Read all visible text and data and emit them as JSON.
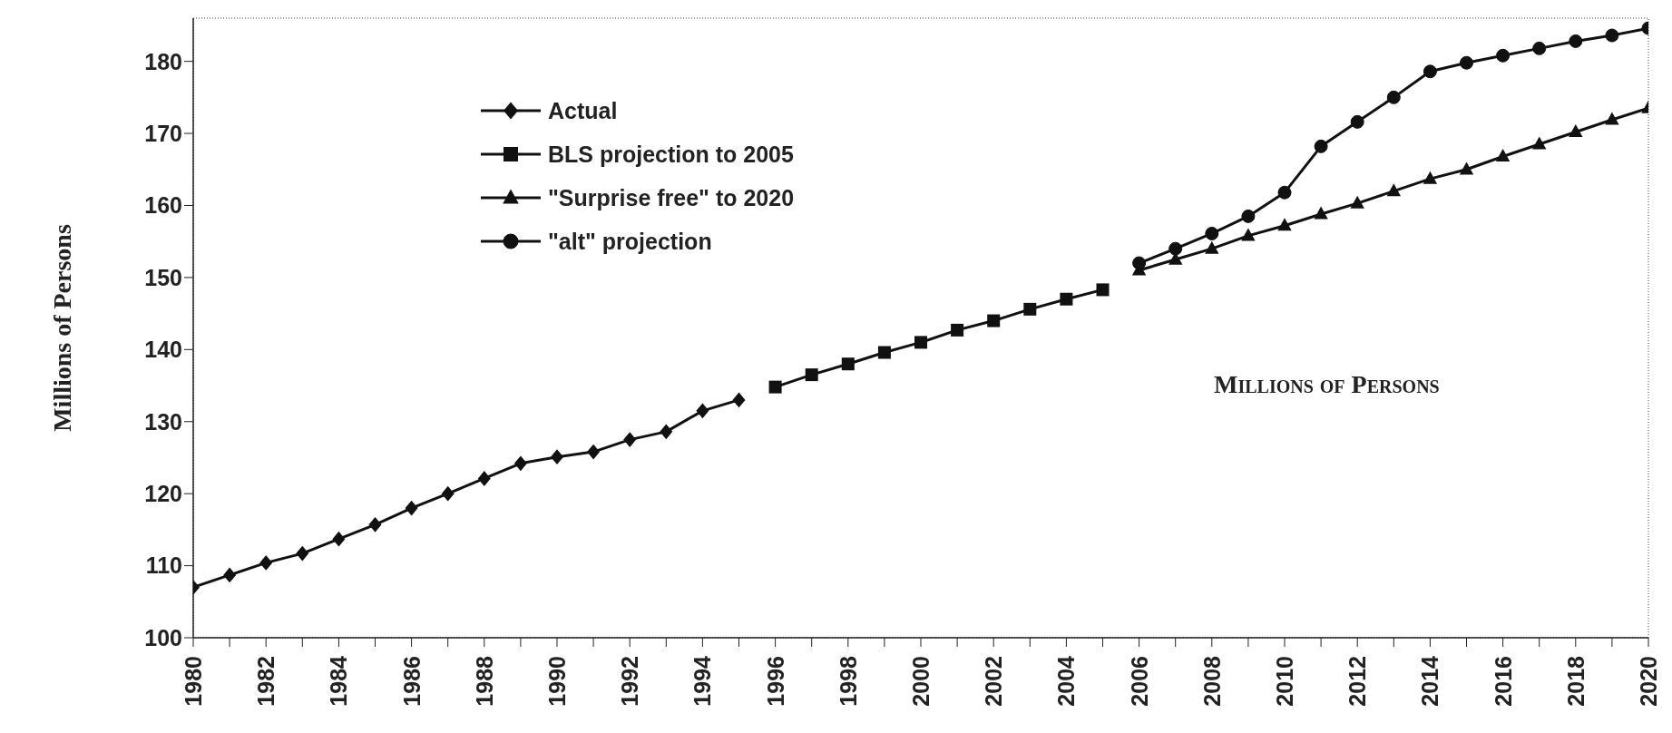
{
  "chart_data": {
    "type": "line",
    "ylabel": "Millions of Persons",
    "annotations": [
      "Millions of Persons"
    ],
    "xlim": [
      1980,
      2020
    ],
    "ylim": [
      100,
      186
    ],
    "xticks": [
      1980,
      {
        "value": 1981,
        "label": null
      },
      1982,
      {
        "value": 1983,
        "label": null
      },
      1984,
      {
        "value": 1985,
        "label": null
      },
      1986,
      {
        "value": 1987,
        "label": null
      },
      1988,
      {
        "value": 1989,
        "label": null
      },
      1990,
      {
        "value": 1991,
        "label": null
      },
      1992,
      {
        "value": 1993,
        "label": null
      },
      1994,
      {
        "value": 1995,
        "label": null
      },
      1996,
      {
        "value": 1997,
        "label": null
      },
      1998,
      {
        "value": 1999,
        "label": null
      },
      2000,
      {
        "value": 2001,
        "label": null
      },
      2002,
      {
        "value": 2003,
        "label": null
      },
      2004,
      {
        "value": 2005,
        "label": null
      },
      2006,
      {
        "value": 2007,
        "label": null
      },
      2008,
      {
        "value": 2009,
        "label": null
      },
      2010,
      {
        "value": 2011,
        "label": null
      },
      2012,
      {
        "value": 2013,
        "label": null
      },
      2014,
      {
        "value": 2015,
        "label": null
      },
      2016,
      {
        "value": 2017,
        "label": null
      },
      2018,
      {
        "value": 2019,
        "label": null
      },
      2020
    ],
    "yticks": [
      100,
      110,
      120,
      130,
      140,
      150,
      160,
      170,
      180
    ],
    "legend": "top left",
    "series": [
      {
        "name": "Actual",
        "color": "#111111",
        "marker": "diamond",
        "x": [
          1980,
          1981,
          1982,
          1983,
          1984,
          1985,
          1986,
          1987,
          1988,
          1989,
          1990,
          1991,
          1992,
          1993,
          1994,
          1995
        ],
        "values": [
          107,
          108.7,
          110.4,
          111.7,
          113.7,
          115.7,
          118,
          120,
          122.1,
          124.2,
          125.1,
          125.8,
          127.5,
          128.6,
          131.5,
          133
        ]
      },
      {
        "name": "BLS projection to 2005",
        "color": "#111111",
        "marker": "square",
        "x": [
          1996,
          1997,
          1998,
          1999,
          2000,
          2001,
          2002,
          2003,
          2004,
          2005
        ],
        "values": [
          134.8,
          136.5,
          138,
          139.6,
          141,
          142.7,
          144,
          145.6,
          147,
          148.3
        ]
      },
      {
        "name": "\"Surprise free\" to 2020",
        "color": "#111111",
        "marker": "triangle",
        "x": [
          2006,
          2007,
          2008,
          2009,
          2010,
          2011,
          2012,
          2013,
          2014,
          2015,
          2016,
          2017,
          2018,
          2019,
          2020
        ],
        "values": [
          151,
          152.5,
          154,
          155.8,
          157.2,
          158.8,
          160.3,
          162,
          163.7,
          165,
          166.8,
          168.5,
          170.2,
          171.9,
          173.5
        ]
      },
      {
        "name": "\"alt\" projection",
        "color": "#111111",
        "marker": "circle",
        "x": [
          2006,
          2007,
          2008,
          2009,
          2010,
          2011,
          2012,
          2013,
          2014,
          2015,
          2016,
          2017,
          2018,
          2019,
          2020
        ],
        "values": [
          152,
          154,
          156.1,
          158.5,
          161.8,
          168.2,
          171.6,
          175,
          178.6,
          179.8,
          180.8,
          181.8,
          182.8,
          183.6,
          184.6
        ]
      }
    ]
  }
}
